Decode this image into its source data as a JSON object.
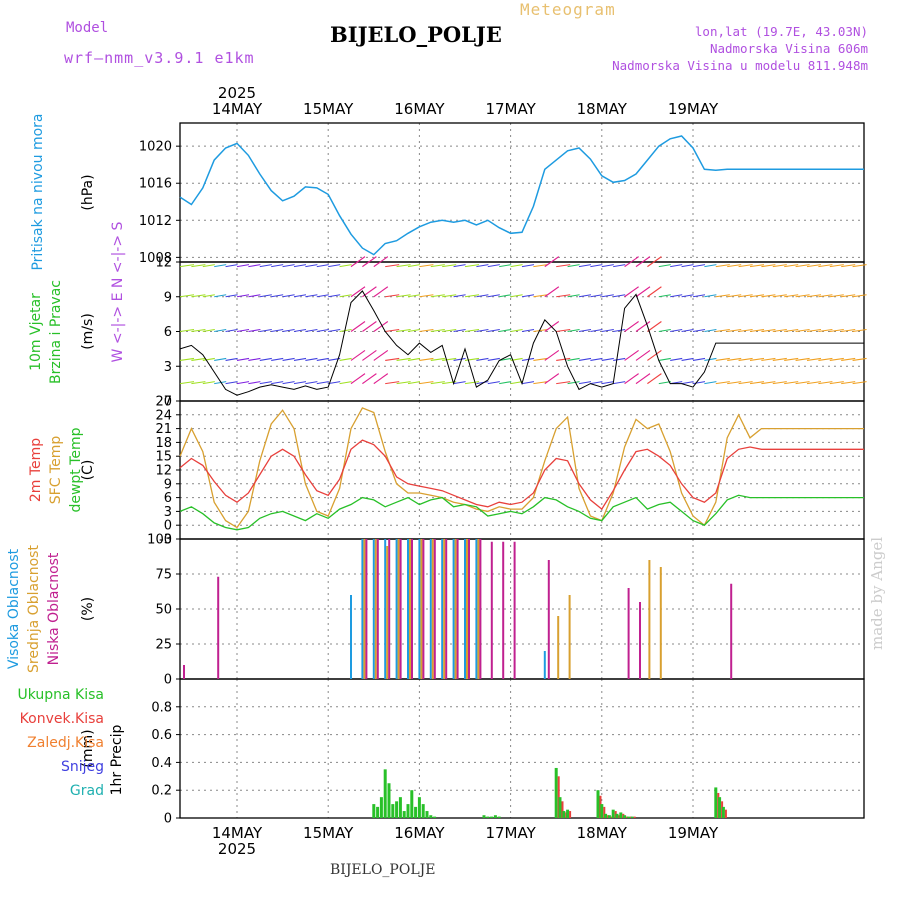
{
  "header": {
    "model_label": "Model",
    "model": "wrf–nmm_v3.9.1  e1km",
    "kind": "Meteogram",
    "station": "BIJELO_POLJE",
    "lonlat": "lon,lat (19.7E, 43.03N)",
    "elevation": "Nadmorska Visina 606m",
    "elevation_model": "Nadmorska Visina u modelu 811.948m"
  },
  "footer_station": "BIJELO_POLJE",
  "watermark": "made by Angel",
  "year": "2025",
  "day_labels": [
    "14MAY",
    "15MAY",
    "16MAY",
    "17MAY",
    "18MAY",
    "19MAY"
  ],
  "colors": {
    "pressure": "#1e9be0",
    "temp2m": "#e8403c",
    "sfc_temp": "#d8a030",
    "dewpoint": "#28c028",
    "high_cloud": "#1e9be0",
    "mid_cloud": "#d8a030",
    "low_cloud": "#c02090",
    "total_precip": "#28c028",
    "conv_precip": "#e8403c",
    "frozen": "#f08030",
    "snow": "#4040e0",
    "graupel": "#20b0b0"
  },
  "chart_data": [
    {
      "type": "line",
      "title": "Pritisak na nivou mora",
      "ylabel": "Pritisak na nivou mora",
      "unit": "(hPa)",
      "ylim": [
        1007.5,
        1022.5
      ],
      "yticks": [
        1008,
        1012,
        1016,
        1020
      ],
      "x_hours": [
        0,
        3,
        6,
        9,
        12,
        15,
        18,
        21,
        24,
        27,
        30,
        33,
        36,
        39,
        42,
        45,
        48,
        51,
        54,
        57,
        60,
        63,
        66,
        69,
        72,
        75,
        78,
        81,
        84,
        87,
        90,
        93,
        96,
        99,
        102,
        105,
        108,
        111,
        114,
        117,
        120,
        123,
        126,
        129,
        132,
        135,
        138,
        141,
        144,
        147,
        150,
        153,
        156,
        159,
        162,
        165,
        168,
        171,
        174,
        177,
        180
      ],
      "series": [
        {
          "name": "Pritisak",
          "values": [
            1014.5,
            1013.7,
            1015.5,
            1018.5,
            1019.8,
            1020.3,
            1019.0,
            1017.0,
            1015.2,
            1014.1,
            1014.6,
            1015.6,
            1015.5,
            1014.8,
            1012.5,
            1010.5,
            1009.0,
            1008.3,
            1009.5,
            1009.8,
            1010.6,
            1011.3,
            1011.8,
            1012.0,
            1011.8,
            1012.0,
            1011.5,
            1012.0,
            1011.2,
            1010.6,
            1010.7,
            1013.5,
            1017.5,
            1018.5,
            1019.5,
            1019.8,
            1018.6,
            1016.8,
            1016.1,
            1016.3,
            1017.0,
            1018.5,
            1020.0,
            1020.8,
            1021.1,
            1019.8,
            1017.5,
            1017.4,
            1017.5,
            1017.5,
            1017.5,
            1017.5,
            1017.5,
            1017.5,
            1017.5,
            1017.5,
            1017.5,
            1017.5,
            1017.5,
            1017.5,
            1017.5
          ]
        }
      ]
    },
    {
      "type": "line",
      "title": "10m Vjetar Brzina i Pravac",
      "ylabel": "10m Vjetar Brzina i Pravac",
      "unit": "(m/s)",
      "direction_legend": "W <-|-> E  N <-|-> S",
      "ylim": [
        0,
        12
      ],
      "yticks": [
        0,
        3,
        6,
        9,
        12
      ],
      "series": [
        {
          "name": "Brzina",
          "values": [
            4.5,
            4.8,
            4.0,
            2.5,
            1.0,
            0.5,
            0.8,
            1.2,
            1.4,
            1.2,
            1.0,
            1.3,
            1.0,
            1.2,
            4.0,
            8.5,
            9.5,
            7.8,
            6.0,
            4.8,
            4.0,
            5.0,
            4.2,
            4.8,
            1.5,
            4.5,
            1.2,
            1.8,
            3.5,
            4.0,
            1.5,
            5.0,
            7.0,
            6.0,
            3.0,
            1.0,
            1.5,
            1.2,
            1.5,
            8.0,
            9.2,
            6.5,
            3.5,
            1.5,
            1.5,
            1.2,
            2.5,
            5.0,
            5.0,
            5.0,
            5.0,
            5.0,
            5.0,
            5.0,
            5.0,
            5.0,
            5.0,
            5.0,
            5.0,
            5.0,
            5.0
          ]
        }
      ]
    },
    {
      "type": "line",
      "title": "2m Temp / SFC Temp / dewpt Temp",
      "unit": "(C)",
      "ylim": [
        -3,
        27
      ],
      "yticks": [
        -3,
        0,
        3,
        6,
        9,
        12,
        15,
        18,
        21,
        24,
        27
      ],
      "series": [
        {
          "name": "2m Temp",
          "values": [
            12.5,
            14.5,
            13.0,
            9.5,
            6.5,
            5.0,
            7.0,
            11.0,
            15.0,
            16.5,
            15.0,
            11.0,
            7.5,
            6.5,
            10.0,
            16.5,
            18.5,
            17.5,
            15.0,
            10.5,
            9.0,
            8.5,
            8.0,
            7.5,
            6.5,
            5.5,
            4.5,
            4.0,
            5.0,
            4.5,
            5.0,
            7.0,
            12.0,
            14.5,
            14.0,
            9.0,
            5.5,
            3.5,
            7.5,
            12.0,
            16.0,
            16.5,
            15.0,
            13.0,
            9.0,
            6.0,
            5.0,
            7.0,
            14.5,
            16.5,
            17.0,
            16.5,
            16.5,
            16.5,
            16.5,
            16.5,
            16.5,
            16.5,
            16.5,
            16.5,
            16.5
          ]
        },
        {
          "name": "SFC Temp",
          "values": [
            15.0,
            21.0,
            16.0,
            5.0,
            1.0,
            -0.5,
            3.0,
            14.0,
            22.0,
            25.0,
            21.0,
            9.0,
            3.0,
            2.0,
            8.0,
            21.0,
            25.5,
            24.5,
            16.0,
            9.0,
            7.0,
            7.0,
            6.5,
            6.0,
            5.0,
            4.5,
            3.5,
            3.0,
            4.0,
            3.5,
            3.5,
            6.0,
            14.0,
            21.0,
            23.5,
            8.0,
            2.0,
            1.0,
            7.0,
            17.0,
            23.0,
            21.0,
            22.0,
            16.0,
            7.0,
            2.0,
            0.0,
            5.0,
            19.0,
            24.0,
            19.0,
            21.0,
            21.0,
            21.0,
            21.0,
            21.0,
            21.0,
            21.0,
            21.0,
            21.0,
            21.0
          ]
        },
        {
          "name": "dewpt Temp",
          "values": [
            3.0,
            4.0,
            2.5,
            0.5,
            -0.5,
            -1.0,
            -0.5,
            1.5,
            2.5,
            3.0,
            2.0,
            1.0,
            2.5,
            1.5,
            3.5,
            4.5,
            6.0,
            5.5,
            4.0,
            5.0,
            6.0,
            4.5,
            5.5,
            6.0,
            4.0,
            4.5,
            4.0,
            2.0,
            2.5,
            3.0,
            2.5,
            4.0,
            6.0,
            5.5,
            4.0,
            3.0,
            1.5,
            1.0,
            4.0,
            5.0,
            6.0,
            3.5,
            4.5,
            5.0,
            3.0,
            1.0,
            0.0,
            2.5,
            5.5,
            6.5,
            6.0,
            6.0,
            6.0,
            6.0,
            6.0,
            6.0,
            6.0,
            6.0,
            6.0,
            6.0,
            6.0
          ]
        }
      ]
    },
    {
      "type": "bar",
      "title": "Visoka / Srednja / Niska Oblacnost",
      "unit": "(%)",
      "ylim": [
        0,
        100
      ],
      "yticks": [
        0,
        25,
        50,
        75,
        100
      ],
      "series": [
        {
          "name": "Visoka Oblacnost",
          "values": [
            0,
            0,
            0,
            0,
            0,
            0,
            0,
            0,
            0,
            0,
            0,
            0,
            0,
            0,
            0,
            60,
            100,
            100,
            100,
            100,
            100,
            100,
            100,
            100,
            100,
            100,
            100,
            0,
            0,
            0,
            0,
            0,
            20,
            0,
            0,
            0,
            0,
            0,
            0,
            0,
            0,
            0,
            0,
            0,
            0,
            0,
            0,
            0,
            0,
            0,
            0,
            0,
            0,
            0,
            0,
            0,
            0,
            0,
            0,
            0,
            0
          ]
        },
        {
          "name": "Srednja Oblacnost",
          "values": [
            0,
            0,
            0,
            0,
            0,
            0,
            0,
            0,
            0,
            0,
            0,
            0,
            0,
            0,
            0,
            0,
            100,
            100,
            95,
            100,
            100,
            100,
            100,
            100,
            100,
            100,
            100,
            0,
            0,
            0,
            0,
            0,
            0,
            45,
            60,
            0,
            0,
            0,
            0,
            0,
            0,
            85,
            80,
            0,
            0,
            0,
            0,
            0,
            0,
            0,
            0,
            0,
            0,
            0,
            0,
            0,
            0,
            0,
            0,
            0,
            0
          ]
        },
        {
          "name": "Niska Oblacnost",
          "values": [
            10,
            0,
            0,
            73,
            0,
            0,
            0,
            0,
            0,
            0,
            0,
            0,
            0,
            0,
            0,
            0,
            100,
            100,
            100,
            100,
            100,
            100,
            100,
            100,
            100,
            100,
            100,
            98,
            98,
            98,
            0,
            0,
            85,
            0,
            0,
            0,
            0,
            0,
            0,
            65,
            55,
            0,
            0,
            0,
            0,
            0,
            0,
            0,
            68,
            0,
            0,
            0,
            0,
            0,
            0,
            0,
            0,
            0,
            0,
            0,
            0
          ]
        }
      ]
    },
    {
      "type": "bar",
      "title": "1hr Precip",
      "ylabel": "1hr Precip",
      "unit": "(mm)",
      "legend": [
        "Ukupna Kisa",
        "Konvek.Kisa",
        "Zaledj.Kisa",
        "Snijeg",
        "Grad"
      ],
      "ylim": [
        0,
        1.0
      ],
      "yticks": [
        0,
        0.2,
        0.4,
        0.6,
        0.8
      ],
      "bars_hours": [
        51,
        52,
        53,
        54,
        55,
        56,
        57,
        58,
        59,
        60,
        61,
        62,
        63,
        64,
        65,
        66,
        67,
        80,
        81,
        82,
        83,
        84,
        99,
        100,
        101,
        102,
        110,
        111,
        112,
        113,
        114,
        115,
        116,
        117,
        118,
        119,
        141,
        142,
        143
      ],
      "series": [
        {
          "name": "Ukupna Kisa",
          "values": [
            0.1,
            0.08,
            0.15,
            0.35,
            0.25,
            0.1,
            0.12,
            0.15,
            0.05,
            0.1,
            0.2,
            0.08,
            0.15,
            0.1,
            0.05,
            0.02,
            0.01,
            0.02,
            0.01,
            0.01,
            0.02,
            0.01,
            0.36,
            0.15,
            0.05,
            0.06,
            0.2,
            0.1,
            0.03,
            0.02,
            0.06,
            0.03,
            0.04,
            0.02,
            0.01,
            0.01,
            0.22,
            0.15,
            0.08
          ]
        },
        {
          "name": "Konvek.Kisa",
          "values": [
            0,
            0,
            0,
            0,
            0,
            0,
            0,
            0,
            0,
            0,
            0,
            0,
            0,
            0,
            0,
            0,
            0,
            0,
            0,
            0,
            0,
            0,
            0.3,
            0.12,
            0.04,
            0.05,
            0.16,
            0.08,
            0.02,
            0.01,
            0.05,
            0.02,
            0.03,
            0.01,
            0.01,
            0.01,
            0.18,
            0.12,
            0.06
          ]
        }
      ]
    }
  ]
}
